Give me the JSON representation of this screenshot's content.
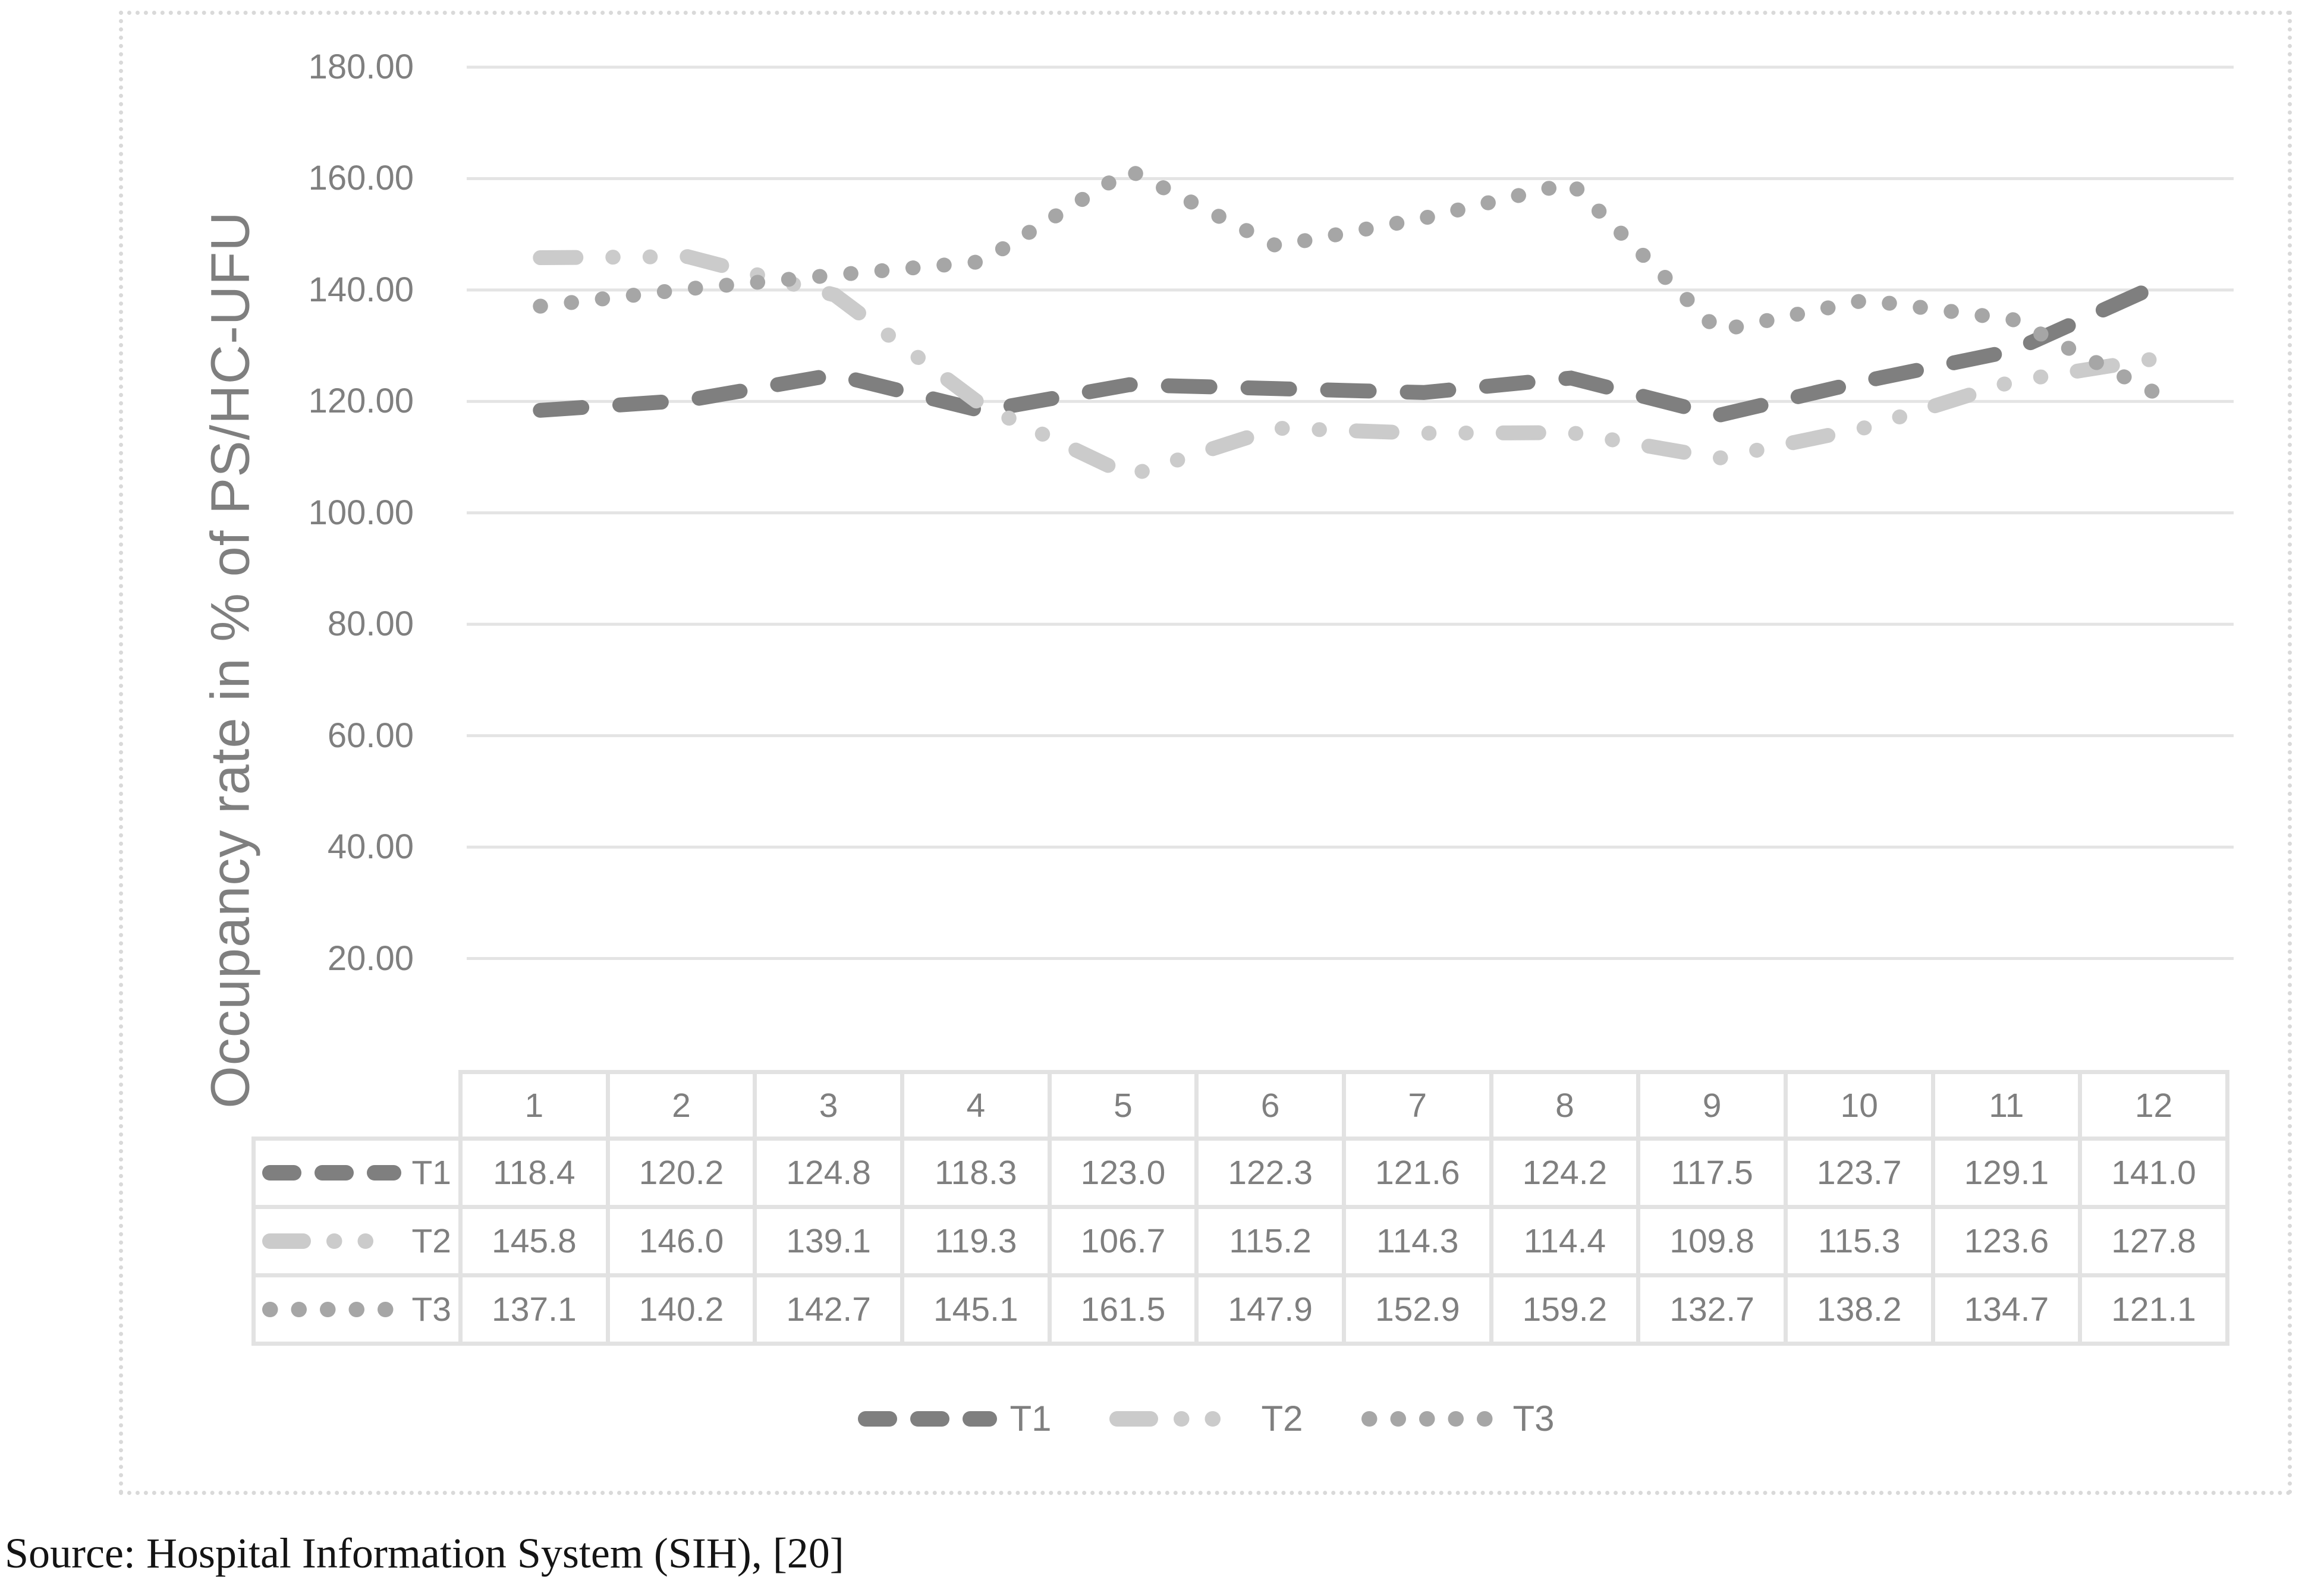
{
  "chart_data": {
    "type": "line",
    "title": "",
    "y_axis": {
      "title": "Occupancy rate in % of PS/HC-UFU",
      "min": 0,
      "max": 180,
      "step": 20,
      "tick_labels": [
        "180.00",
        "160.00",
        "140.00",
        "120.00",
        "100.00",
        "80.00",
        "60.00",
        "40.00",
        "20.00",
        "-"
      ]
    },
    "x_axis": {
      "categories": [
        "1",
        "2",
        "3",
        "4",
        "5",
        "6",
        "7",
        "8",
        "9",
        "10",
        "11",
        "12"
      ]
    },
    "series": [
      {
        "name": "T1",
        "line_style": "dash",
        "color": "#7f7f7f",
        "values": [
          118.4,
          120.2,
          124.8,
          118.3,
          123.0,
          122.3,
          121.6,
          124.2,
          117.5,
          123.7,
          129.1,
          141.0
        ]
      },
      {
        "name": "T2",
        "line_style": "dash-dot-dot",
        "color": "#cbcbcb",
        "values": [
          145.8,
          146.0,
          139.1,
          119.3,
          106.7,
          115.2,
          114.3,
          114.4,
          109.8,
          115.3,
          123.6,
          127.8
        ]
      },
      {
        "name": "T3",
        "line_style": "dot",
        "color": "#a6a6a6",
        "values": [
          137.1,
          140.2,
          142.7,
          145.1,
          161.5,
          147.9,
          152.9,
          159.2,
          132.7,
          138.2,
          134.7,
          121.1
        ]
      }
    ],
    "grid": true,
    "legend_position": "bottom",
    "data_table": true,
    "value_format_decimals": 1
  },
  "legend": {
    "items": [
      "T1",
      "T2",
      "T3"
    ]
  },
  "source_text": "Source: Hospital Information System (SIH), [20]",
  "colors": {
    "text_gray": "#7f7f7f",
    "gridline": "#e4e4e4",
    "table_border": "#e2e2e2",
    "frame_border": "#d9d9d9",
    "t1": "#7f7f7f",
    "t2": "#cbcbcb",
    "t3": "#a6a6a6"
  }
}
